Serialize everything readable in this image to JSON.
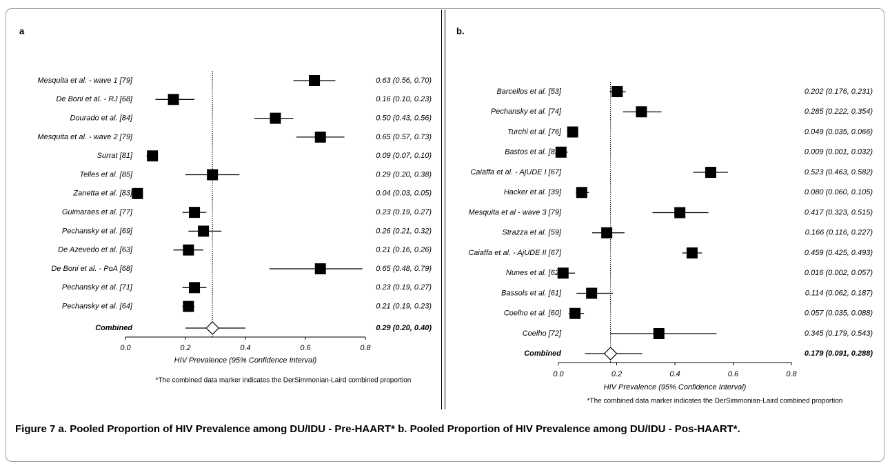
{
  "chart_data": [
    {
      "type": "forest",
      "panel_label": "a",
      "categories": [
        "Mesquita et al. - wave 1 [79]",
        "De Boni et al. - RJ [68]",
        "Dourado et al. [84]",
        "Mesquita et al. - wave 2 [79]",
        "Surrat [81]",
        "Telles et al. [85]",
        "Zanetta et al. [83]",
        "Guimaraes et al. [77]",
        "Pechansky et al. [69]",
        "De Azevedo et al. [63]",
        "De Boni et al. - PoA [68]",
        "Pechansky et al. [71]",
        "Pechansky et al. [64]"
      ],
      "values": [
        0.63,
        0.16,
        0.5,
        0.65,
        0.09,
        0.29,
        0.04,
        0.23,
        0.26,
        0.21,
        0.65,
        0.23,
        0.21
      ],
      "lower": [
        0.56,
        0.1,
        0.43,
        0.57,
        0.07,
        0.2,
        0.03,
        0.19,
        0.21,
        0.16,
        0.48,
        0.19,
        0.19
      ],
      "upper": [
        0.7,
        0.23,
        0.56,
        0.73,
        0.1,
        0.38,
        0.05,
        0.27,
        0.32,
        0.26,
        0.79,
        0.27,
        0.23
      ],
      "value_labels": [
        "0.63 (0.56, 0.70)",
        "0.16 (0.10, 0.23)",
        "0.50 (0.43, 0.56)",
        "0.65 (0.57, 0.73)",
        "0.09 (0.07, 0.10)",
        "0.29 (0.20, 0.38)",
        "0.04 (0.03, 0.05)",
        "0.23 (0.19, 0.27)",
        "0.26 (0.21, 0.32)",
        "0.21 (0.16, 0.26)",
        "0.65 (0.48, 0.79)",
        "0.23 (0.19, 0.27)",
        "0.21 (0.19, 0.23)"
      ],
      "combined": {
        "label": "Combined",
        "value": 0.29,
        "lower": 0.2,
        "upper": 0.4,
        "value_label": "0.29 (0.20, 0.40)"
      },
      "xlim": [
        0,
        0.8
      ],
      "xticks": [
        {
          "value": 0,
          "label": "0.0"
        },
        0.2,
        0.4,
        0.6,
        0.8
      ],
      "x_label": "HIV Prevalence (95% Confidence Interval)",
      "footnote": "*The combined data marker indicates the DerSimmonian-Laird combined proportion",
      "color": "#000000"
    },
    {
      "type": "forest",
      "panel_label": "b.",
      "categories": [
        "Barcellos et al. [53]",
        "Pechansky et al. [74]",
        "Turchi et al. [76]",
        "Bastos et al. [82]",
        "Caiaffa et al. - AjUDE I [67]",
        "Hacker et al. [39]",
        "Mesquita et al - wave 3 [79]",
        "Strazza et al. [59]",
        "Caiaffa et al. - AjUDE II [67]",
        "Nunes et al. [62]",
        "Bassols et al. [61]",
        "Coelho et al. [60]",
        "Coelho [72]"
      ],
      "values": [
        0.202,
        0.285,
        0.049,
        0.009,
        0.523,
        0.08,
        0.417,
        0.166,
        0.459,
        0.016,
        0.114,
        0.057,
        0.345
      ],
      "lower": [
        0.176,
        0.222,
        0.035,
        0.001,
        0.463,
        0.06,
        0.323,
        0.116,
        0.425,
        0.002,
        0.062,
        0.035,
        0.179
      ],
      "upper": [
        0.231,
        0.354,
        0.066,
        0.032,
        0.582,
        0.105,
        0.515,
        0.227,
        0.493,
        0.057,
        0.187,
        0.088,
        0.543
      ],
      "value_labels": [
        "0.202 (0.176, 0.231)",
        "0.285 (0.222, 0.354)",
        "0.049 (0.035, 0.066)",
        "0.009 (0.001, 0.032)",
        "0.523 (0.463, 0.582)",
        "0.080 (0.060, 0.105)",
        "0.417 (0.323, 0.515)",
        "0.166 (0.116, 0.227)",
        "0.459 (0.425, 0.493)",
        "0.016 (0.002, 0.057)",
        "0.114 (0.062, 0.187)",
        "0.057 (0.035, 0.088)",
        "0.345 (0.179, 0.543)"
      ],
      "combined": {
        "label": "Combined",
        "value": 0.179,
        "lower": 0.091,
        "upper": 0.288,
        "value_label": "0.179 (0.091, 0.288)"
      },
      "xlim": [
        0,
        0.8
      ],
      "xticks": [
        {
          "value": 0,
          "label": "0.0"
        },
        0.2,
        0.4,
        0.6,
        0.8
      ],
      "x_label": "HIV Prevalence (95% Confidence Interval)",
      "footnote": "*The combined data marker indicates the DerSimmonian-Laird combined proportion",
      "color": "#000000"
    }
  ],
  "figure_label": "Figure 7",
  "caption": "a. Pooled Proportion of HIV Prevalence among DU/IDU - Pre-HAART* b. Pooled Proportion of HIV Prevalence among DU/IDU - Pos-HAART*."
}
